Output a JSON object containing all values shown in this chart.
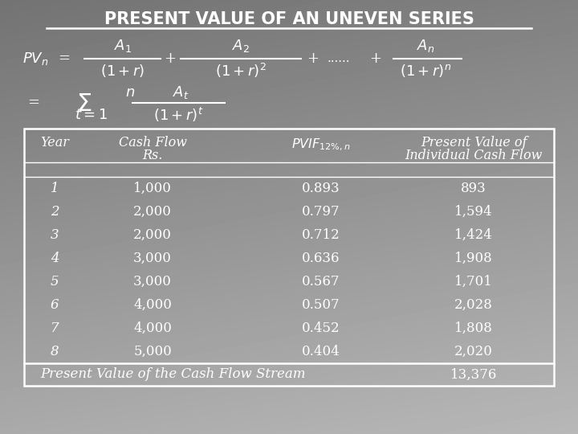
{
  "title": "PRESENT VALUE OF AN UNEVEN SERIES",
  "bg_gradient_min": 0.45,
  "bg_gradient_max": 0.72,
  "text_color": "#ffffff",
  "years": [
    1,
    2,
    3,
    4,
    5,
    6,
    7,
    8
  ],
  "cash_flows": [
    "1,000",
    "2,000",
    "2,000",
    "3,000",
    "3,000",
    "4,000",
    "4,000",
    "5,000"
  ],
  "pvif": [
    "0.893",
    "0.797",
    "0.712",
    "0.636",
    "0.567",
    "0.507",
    "0.452",
    "0.404"
  ],
  "pv_values": [
    "893",
    "1,594",
    "1,424",
    "1,908",
    "1,701",
    "2,028",
    "1,808",
    "2,020"
  ],
  "total_label": "Present Value of the Cash Flow Stream",
  "total_value": "13,376"
}
